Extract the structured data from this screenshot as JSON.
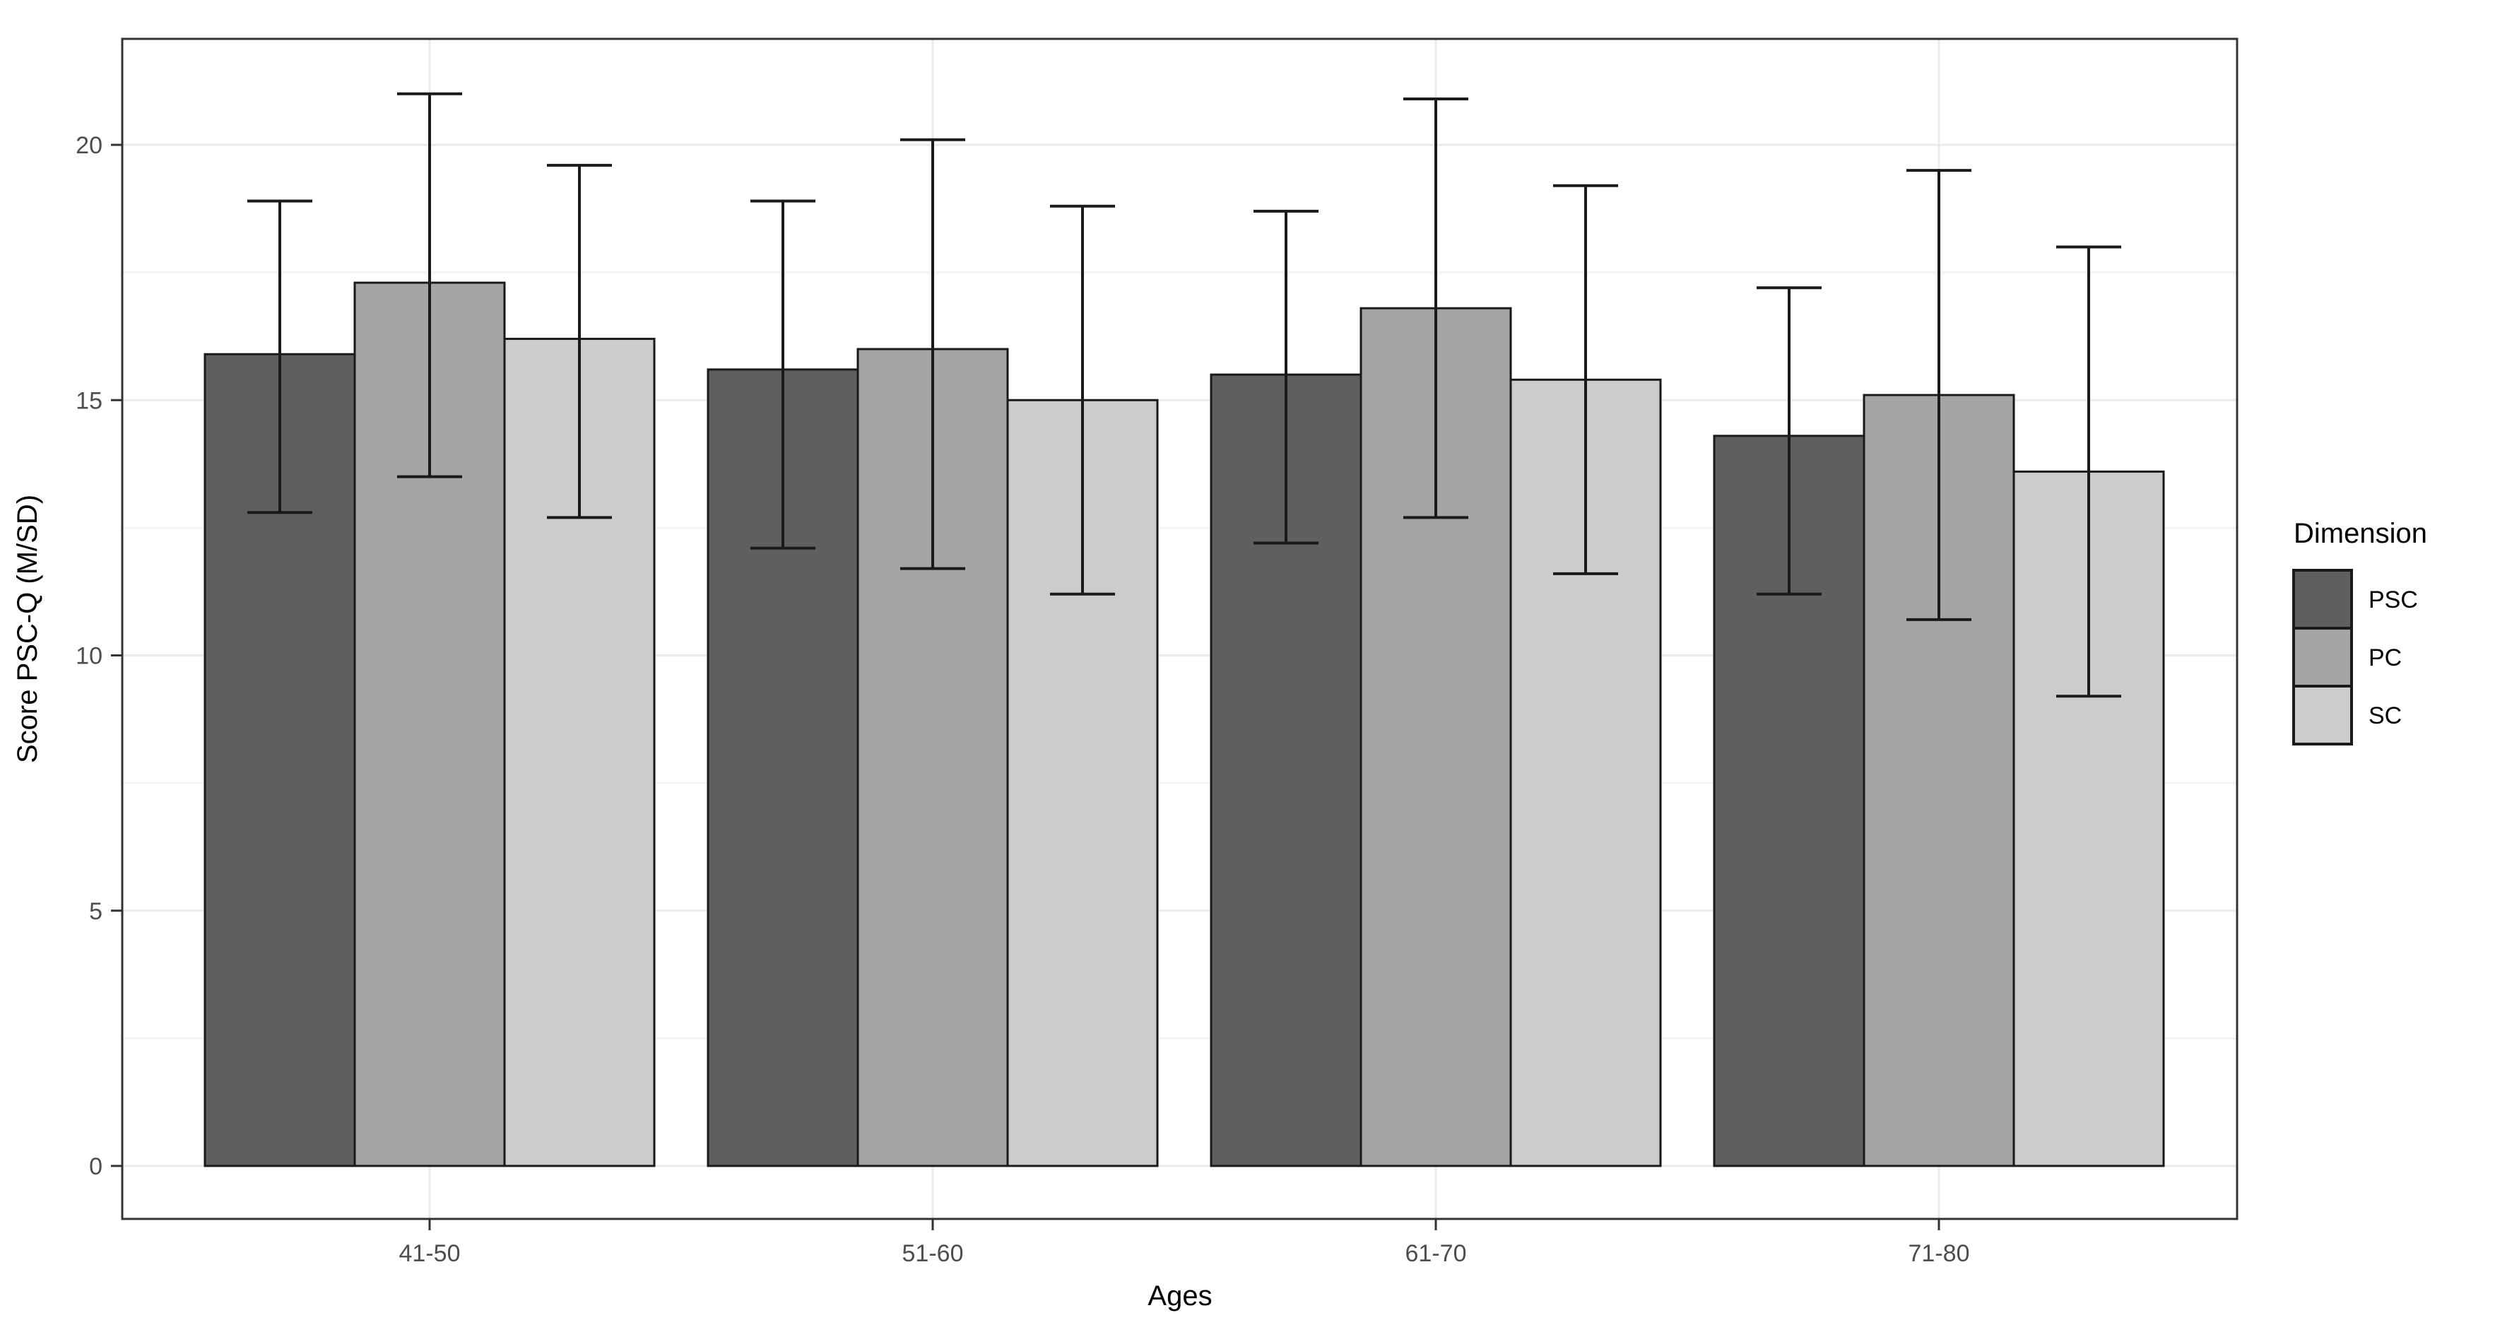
{
  "chart_data": {
    "type": "bar",
    "title": "",
    "xlabel": "Ages",
    "ylabel": "Score PSC-Q (M/SD)",
    "legend_title": "Dimension",
    "legend_position": "right",
    "grid": true,
    "categories": [
      "41-50",
      "51-60",
      "61-70",
      "71-80"
    ],
    "yticks": [
      0,
      5,
      10,
      15,
      20
    ],
    "ylim": [
      0,
      22.1
    ],
    "bar_style": "grouped, black outline, error bars mean ± SD",
    "series": [
      {
        "name": "PSC",
        "color": "#5F5F5F",
        "values": [
          15.9,
          15.6,
          15.5,
          14.3
        ],
        "error_high": [
          18.9,
          18.9,
          18.7,
          17.2
        ],
        "error_low": [
          12.8,
          12.1,
          12.2,
          11.2
        ]
      },
      {
        "name": "PC",
        "color": "#A4A4A4",
        "values": [
          17.3,
          16.0,
          16.8,
          15.1
        ],
        "error_high": [
          21.0,
          20.1,
          20.9,
          19.5
        ],
        "error_low": [
          13.5,
          11.7,
          12.7,
          10.7
        ]
      },
      {
        "name": "SC",
        "color": "#CCCCCC",
        "values": [
          16.2,
          15.0,
          15.4,
          13.6
        ],
        "error_high": [
          19.6,
          18.8,
          19.2,
          18.0
        ],
        "error_low": [
          12.7,
          11.2,
          11.6,
          9.2
        ]
      }
    ],
    "colors": {
      "panel_background": "#FFFFFF",
      "panel_border": "#333333",
      "grid_major": "#EBEBEB",
      "grid_minor": "#F3F3F3",
      "bar_border": "#1A1A1A",
      "error_bar": "#1A1A1A",
      "tick_label": "#4D4D4D",
      "axis_title": "#000000"
    }
  }
}
